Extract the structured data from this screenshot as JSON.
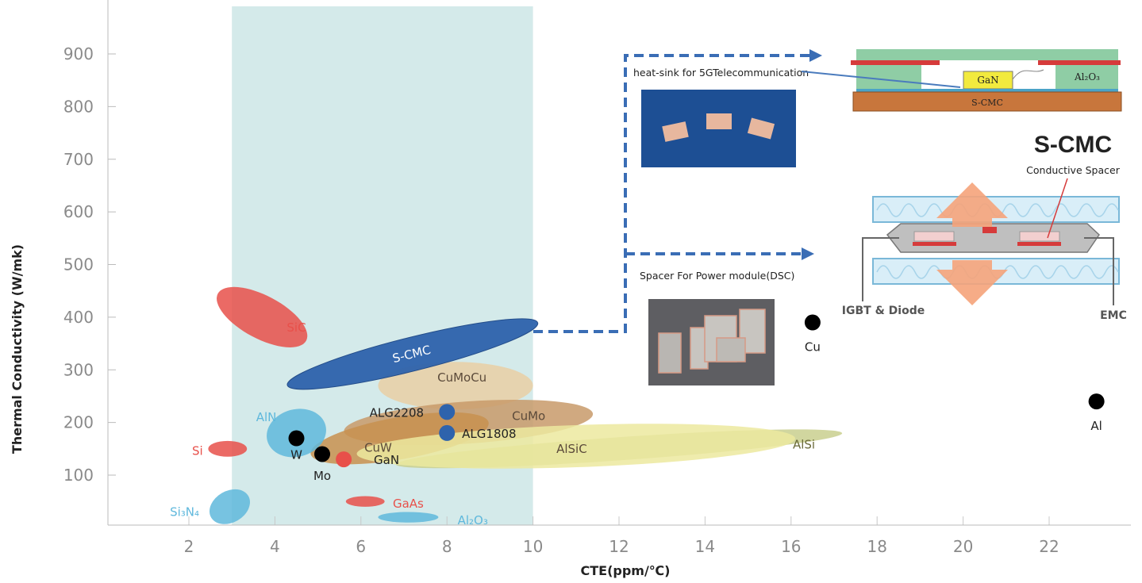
{
  "chart_data": {
    "type": "scatter",
    "xlabel": "CTE(ppm/℃)",
    "ylabel": "Thermal Conductivity (W/mk)",
    "xlim": [
      0.5,
      24.5
    ],
    "ylim": [
      0,
      1000
    ],
    "xticks": [
      2,
      4,
      6,
      8,
      10,
      12,
      14,
      16,
      18,
      20,
      22
    ],
    "yticks": [
      100,
      200,
      300,
      400,
      500,
      600,
      700,
      800,
      900
    ],
    "grid": "vertical",
    "highlight_band": {
      "x": [
        3,
        10
      ],
      "color": "#d4eaea"
    },
    "regions": [
      {
        "label": "SiC",
        "cx": 3.7,
        "cy": 400,
        "rx": 0.5,
        "ry": 95,
        "color": "#e8504a",
        "text_color": "#e8504a"
      },
      {
        "label": "CuMoCu",
        "cx": 8.2,
        "cy": 270,
        "rx": 1.8,
        "ry": 45,
        "color": "#e9cfa5",
        "text_color": "#5b4a3a"
      },
      {
        "label": "CuMo",
        "cx": 8.5,
        "cy": 200,
        "rx": 2.9,
        "ry": 40,
        "color": "#c89a6a",
        "text_color": "#5b4a3a"
      },
      {
        "label": "CuW",
        "cx": 6.9,
        "cy": 170,
        "rx": 2.1,
        "ry": 40,
        "color": "#c8904f",
        "text_color": "#5b4a3a"
      },
      {
        "label": "AlSi",
        "cx": 12.0,
        "cy": 150,
        "rx": 5.2,
        "ry": 22,
        "color": "#c9cf8e",
        "text_color": "#6a6a3a"
      },
      {
        "label": "AlSiC",
        "cx": 11.0,
        "cy": 155,
        "rx": 5.1,
        "ry": 40,
        "color": "#ece99f",
        "text_color": "#5b4a3a"
      },
      {
        "label": "AlN",
        "cx": 4.5,
        "cy": 180,
        "rx": 0.7,
        "ry": 45,
        "color": "#5fb8dc",
        "text_color": "#5fb8dc"
      },
      {
        "label": "S-CMC",
        "cx": 7.2,
        "cy": 330,
        "rx": 3.0,
        "ry": 32,
        "color": "#2e63ac",
        "text_color": "#ffffff"
      },
      {
        "label": "Si",
        "cx": 2.9,
        "cy": 150,
        "rx": 0.45,
        "ry": 15,
        "color": "#e8504a",
        "text_color": "#e8504a"
      },
      {
        "label": "GaAs",
        "cx": 6.1,
        "cy": 50,
        "rx": 0.45,
        "ry": 10,
        "color": "#e8504a",
        "text_color": "#e8504a"
      },
      {
        "label": "Al₂O₃",
        "cx": 7.1,
        "cy": 20,
        "rx": 0.7,
        "ry": 10,
        "color": "#5fb8dc",
        "text_color": "#5fb8dc"
      },
      {
        "label": "Si₃N₄",
        "cx": 2.95,
        "cy": 40,
        "rx": 0.5,
        "ry": 30,
        "color": "#5fb8dc",
        "text_color": "#5fb8dc"
      }
    ],
    "points": [
      {
        "label": "W",
        "x": 4.5,
        "y": 170,
        "color": "#000000"
      },
      {
        "label": "Mo",
        "x": 5.1,
        "y": 140,
        "color": "#000000"
      },
      {
        "label": "GaN",
        "x": 5.6,
        "y": 130,
        "color": "#e8504a"
      },
      {
        "label": "ALG2208",
        "x": 8.0,
        "y": 220,
        "color": "#2e63ac"
      },
      {
        "label": "ALG1808",
        "x": 8.0,
        "y": 180,
        "color": "#2e63ac"
      },
      {
        "label": "Cu",
        "x": 16.5,
        "y": 390,
        "color": "#000000"
      },
      {
        "label": "Al",
        "x": 23.1,
        "y": 240,
        "color": "#000000"
      }
    ]
  },
  "annotations": {
    "heat_sink": "heat-sink for 5GTelecommunication",
    "spacer": "Spacer For Power module(DSC)",
    "scmc_title": "S-CMC",
    "conductive_spacer": "Conductive Spacer",
    "igbt": "IGBT & Diode",
    "emc": "EMC",
    "gan_box": "GaN",
    "al2o3_box": "Al₂O₃",
    "scmc_box": "S-CMC"
  },
  "colors": {
    "dashed_arrow": "#3a6db5",
    "grid": "#c8c8c8"
  }
}
